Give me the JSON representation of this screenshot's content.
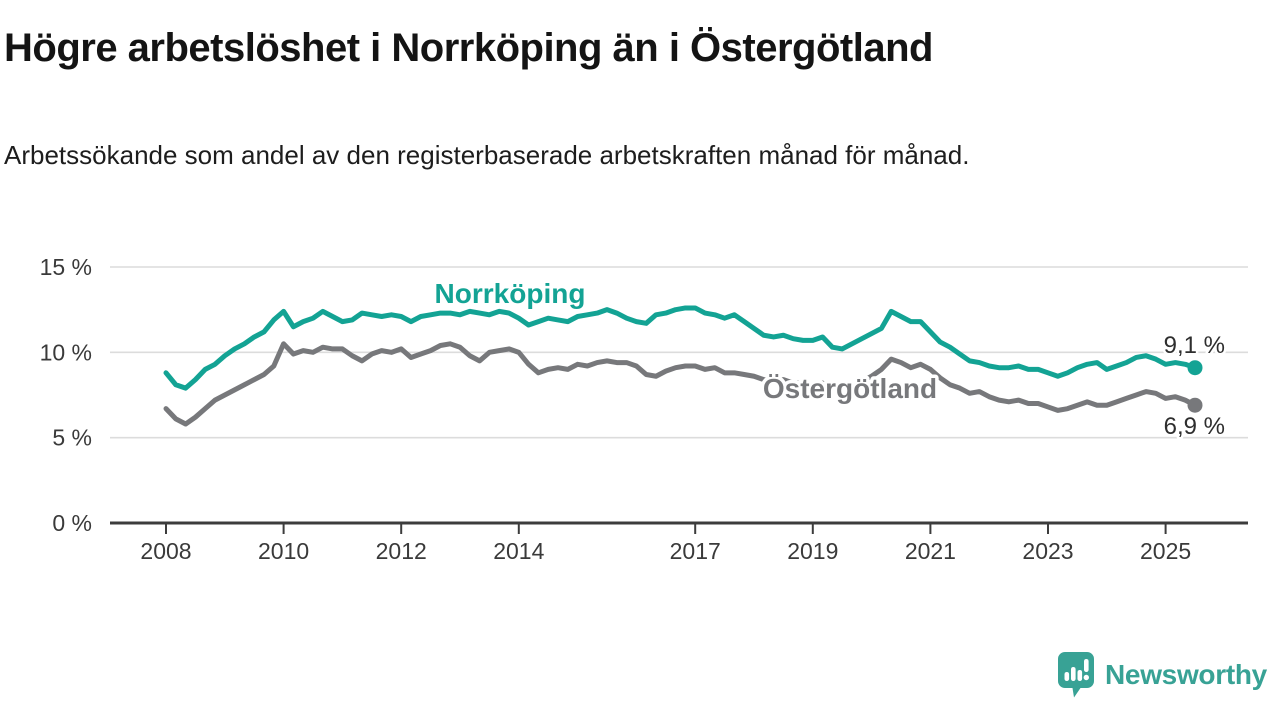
{
  "title": "Högre arbetslöshet i Norrköping än i Östergötland",
  "subtitle": "Arbetssökande som andel av den registerbaserade arbetskraften månad för månad.",
  "branding": {
    "name": "Newsworthy",
    "color": "#38a295"
  },
  "chart_data": {
    "type": "line",
    "title": "Högre arbetslöshet i Norrköping än i Östergötland",
    "subtitle": "Arbetssökande som andel av den registerbaserade arbetskraften månad för månad.",
    "unit": "%",
    "x_start_year": 2008.0,
    "x_step_years": 0.166667,
    "x_end_year": 2025.5,
    "x_tick_years": [
      2008,
      2010,
      2012,
      2014,
      2017,
      2019,
      2021,
      2023,
      2025
    ],
    "x_tick_labels": [
      "2008",
      "2010",
      "2012",
      "2014",
      "2017",
      "2019",
      "2021",
      "2023",
      "2025"
    ],
    "y_ticks": [
      {
        "value": 0,
        "label": "0 %"
      },
      {
        "value": 5,
        "label": "5 %"
      },
      {
        "value": 10,
        "label": "10 %"
      },
      {
        "value": 15,
        "label": "15 %"
      }
    ],
    "ylim": [
      0,
      15
    ],
    "grid": true,
    "legend_position": "inline-labels",
    "colors": {
      "grid": "#dcdcdc",
      "axis": "#3c3c3c",
      "tick_text": "#3a3a3a",
      "value_text": "#2e2e2e"
    },
    "series": [
      {
        "name": "Norrköping",
        "color": "#13a394",
        "end_label": "9,1 %",
        "end_value": 9.1,
        "values": [
          8.8,
          8.1,
          7.9,
          8.4,
          9.0,
          9.3,
          9.8,
          10.2,
          10.5,
          10.9,
          11.2,
          11.9,
          12.4,
          11.5,
          11.8,
          12.0,
          12.4,
          12.1,
          11.8,
          11.9,
          12.3,
          12.2,
          12.1,
          12.2,
          12.1,
          11.8,
          12.1,
          12.2,
          12.3,
          12.3,
          12.2,
          12.4,
          12.3,
          12.2,
          12.4,
          12.3,
          12.0,
          11.6,
          11.8,
          12.0,
          11.9,
          11.8,
          12.1,
          12.2,
          12.3,
          12.5,
          12.3,
          12.0,
          11.8,
          11.7,
          12.2,
          12.3,
          12.5,
          12.6,
          12.6,
          12.3,
          12.2,
          12.0,
          12.2,
          11.8,
          11.4,
          11.0,
          10.9,
          11.0,
          10.8,
          10.7,
          10.7,
          10.9,
          10.3,
          10.2,
          10.5,
          10.8,
          11.1,
          11.4,
          12.4,
          12.1,
          11.8,
          11.8,
          11.2,
          10.6,
          10.3,
          9.9,
          9.5,
          9.4,
          9.2,
          9.1,
          9.1,
          9.2,
          9.0,
          9.0,
          8.8,
          8.6,
          8.8,
          9.1,
          9.3,
          9.4,
          9.0,
          9.2,
          9.4,
          9.7,
          9.8,
          9.6,
          9.3,
          9.4,
          9.3,
          9.1
        ]
      },
      {
        "name": "Östergötland",
        "color": "#77787b",
        "end_label": "6,9 %",
        "end_value": 6.9,
        "values": [
          6.7,
          6.1,
          5.8,
          6.2,
          6.7,
          7.2,
          7.5,
          7.8,
          8.1,
          8.4,
          8.7,
          9.2,
          10.5,
          9.9,
          10.1,
          10.0,
          10.3,
          10.2,
          10.2,
          9.8,
          9.5,
          9.9,
          10.1,
          10.0,
          10.2,
          9.7,
          9.9,
          10.1,
          10.4,
          10.5,
          10.3,
          9.8,
          9.5,
          10.0,
          10.1,
          10.2,
          10.0,
          9.3,
          8.8,
          9.0,
          9.1,
          9.0,
          9.3,
          9.2,
          9.4,
          9.5,
          9.4,
          9.4,
          9.2,
          8.7,
          8.6,
          8.9,
          9.1,
          9.2,
          9.2,
          9.0,
          9.1,
          8.8,
          8.8,
          8.7,
          8.6,
          8.4,
          8.3,
          8.4,
          8.2,
          8.2,
          8.1,
          8.2,
          7.9,
          7.8,
          8.0,
          8.3,
          8.6,
          9.0,
          9.6,
          9.4,
          9.1,
          9.3,
          9.0,
          8.5,
          8.1,
          7.9,
          7.6,
          7.7,
          7.4,
          7.2,
          7.1,
          7.2,
          7.0,
          7.0,
          6.8,
          6.6,
          6.7,
          6.9,
          7.1,
          6.9,
          6.9,
          7.1,
          7.3,
          7.5,
          7.7,
          7.6,
          7.3,
          7.4,
          7.2,
          6.9
        ]
      }
    ]
  }
}
